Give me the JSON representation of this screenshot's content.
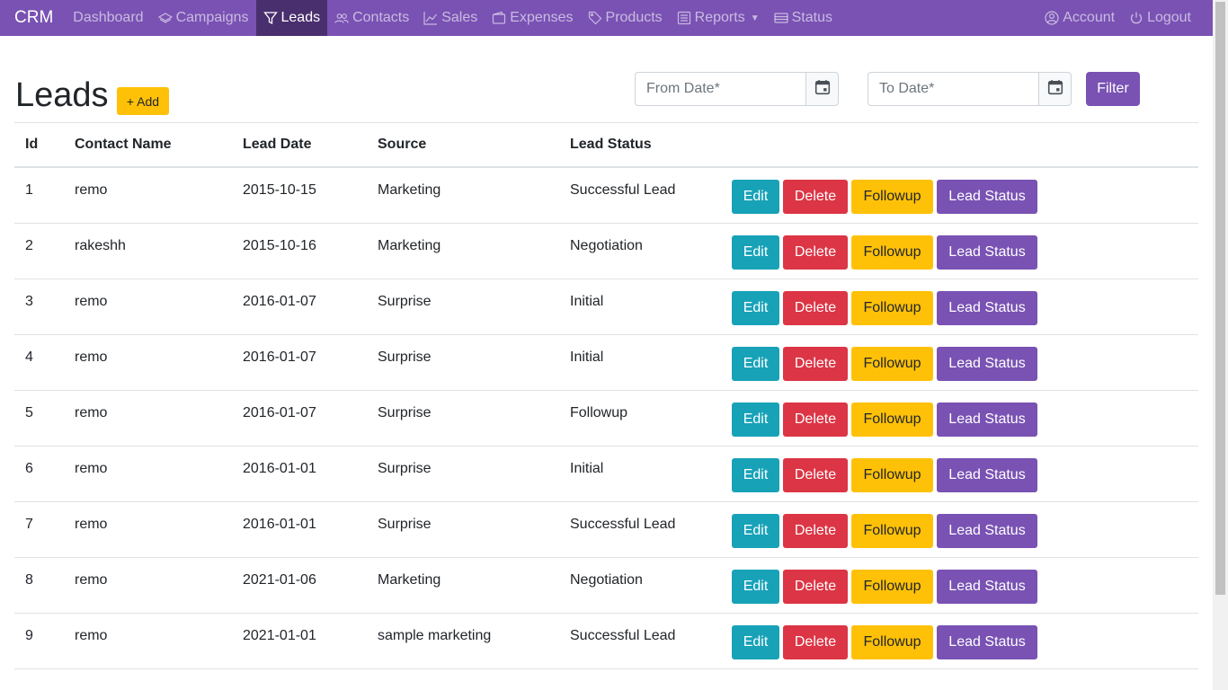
{
  "nav": {
    "brand": "CRM",
    "items": [
      {
        "label": "Dashboard",
        "icon": "none"
      },
      {
        "label": "Campaigns",
        "icon": "layers-icon"
      },
      {
        "label": "Leads",
        "icon": "filter-icon"
      },
      {
        "label": "Contacts",
        "icon": "people-icon"
      },
      {
        "label": "Sales",
        "icon": "graph-up-icon"
      },
      {
        "label": "Expenses",
        "icon": "wallet-icon"
      },
      {
        "label": "Products",
        "icon": "tags-icon"
      },
      {
        "label": "Reports",
        "icon": "list-icon"
      },
      {
        "label": "Status",
        "icon": "card-list-icon"
      }
    ],
    "active": "Leads",
    "account": "Account",
    "logout": "Logout"
  },
  "header": {
    "title": "Leads",
    "add_label": "+ Add",
    "from_placeholder": "From Date*",
    "to_placeholder": "To Date*",
    "filter_label": "Filter"
  },
  "table": {
    "columns": [
      "Id",
      "Contact Name",
      "Lead Date",
      "Source",
      "Lead Status"
    ],
    "action_labels": {
      "edit": "Edit",
      "delete": "Delete",
      "followup": "Followup",
      "status": "Lead Status"
    },
    "rows": [
      {
        "id": "1",
        "contact": "remo",
        "date": "2015-10-15",
        "source": "Marketing",
        "status": "Successful Lead"
      },
      {
        "id": "2",
        "contact": "rakeshh",
        "date": "2015-10-16",
        "source": "Marketing",
        "status": "Negotiation"
      },
      {
        "id": "3",
        "contact": "remo",
        "date": "2016-01-07",
        "source": "Surprise",
        "status": "Initial"
      },
      {
        "id": "4",
        "contact": "remo",
        "date": "2016-01-07",
        "source": "Surprise",
        "status": "Initial"
      },
      {
        "id": "5",
        "contact": "remo",
        "date": "2016-01-07",
        "source": "Surprise",
        "status": "Followup"
      },
      {
        "id": "6",
        "contact": "remo",
        "date": "2016-01-01",
        "source": "Surprise",
        "status": "Initial"
      },
      {
        "id": "7",
        "contact": "remo",
        "date": "2016-01-01",
        "source": "Surprise",
        "status": "Successful Lead"
      },
      {
        "id": "8",
        "contact": "remo",
        "date": "2021-01-06",
        "source": "Marketing",
        "status": "Negotiation"
      },
      {
        "id": "9",
        "contact": "remo",
        "date": "2021-01-01",
        "source": "sample marketing",
        "status": "Successful Lead"
      }
    ]
  },
  "colors": {
    "primary": "#7952b3",
    "nav_active": "#4a2f6e",
    "info": "#17a2b8",
    "danger": "#dc3545",
    "warning": "#ffc107"
  }
}
